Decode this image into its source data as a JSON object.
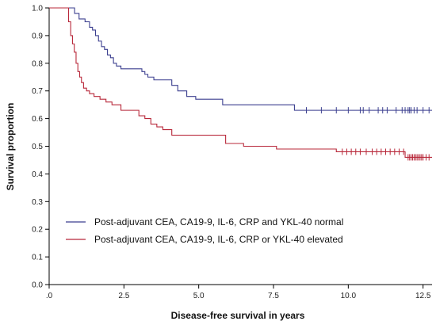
{
  "chart_data": {
    "type": "line",
    "subtype": "kaplan-meier step",
    "xlabel": "Disease-free survival in years",
    "ylabel": "Survival proportion",
    "xlim": [
      0,
      12.8
    ],
    "ylim": [
      0,
      1.0
    ],
    "xticks": [
      0,
      2.5,
      5.0,
      7.5,
      10.0,
      12.5
    ],
    "xtick_labels": [
      ".0",
      "2.5",
      "5.0",
      "7.5",
      "10.0",
      "12.5"
    ],
    "yticks": [
      0,
      0.1,
      0.2,
      0.3,
      0.4,
      0.5,
      0.6,
      0.7,
      0.8,
      0.9,
      1.0
    ],
    "ytick_labels": [
      "0.0",
      "0.1",
      "0.2",
      "0.3",
      "0.4",
      "0.5",
      "0.6",
      "0.7",
      "0.8",
      "0.9",
      "1.0"
    ],
    "grid": false,
    "legend_position": "lower-left",
    "series": [
      {
        "name": "Post-adjuvant CEA, CA19-9, IL-6, CRP and YKL-40 normal",
        "color": "#3b3f8f",
        "x": [
          0,
          0.85,
          1.0,
          1.2,
          1.35,
          1.45,
          1.55,
          1.65,
          1.75,
          1.85,
          1.95,
          2.05,
          2.15,
          2.25,
          2.4,
          3.1,
          3.2,
          3.3,
          3.5,
          4.1,
          4.3,
          4.6,
          4.9,
          5.8,
          8.2,
          12.8
        ],
        "y": [
          1.0,
          0.98,
          0.96,
          0.95,
          0.93,
          0.92,
          0.9,
          0.88,
          0.86,
          0.85,
          0.83,
          0.82,
          0.8,
          0.79,
          0.78,
          0.77,
          0.76,
          0.75,
          0.74,
          0.72,
          0.7,
          0.68,
          0.67,
          0.65,
          0.63,
          0.63
        ],
        "censor_x": [
          8.6,
          9.1,
          9.6,
          10.0,
          10.4,
          10.5,
          10.7,
          11.0,
          11.15,
          11.3,
          11.6,
          11.8,
          11.9,
          12.0,
          12.05,
          12.1,
          12.2,
          12.3,
          12.5,
          12.7
        ]
      },
      {
        "name": "Post-adjuvant CEA, CA19-9, IL-6, CRP or YKL-40 elevated",
        "color": "#b8283a",
        "x": [
          0,
          0.65,
          0.72,
          0.78,
          0.84,
          0.9,
          0.96,
          1.02,
          1.08,
          1.15,
          1.25,
          1.35,
          1.5,
          1.7,
          1.9,
          2.1,
          2.4,
          3.0,
          3.2,
          3.4,
          3.6,
          3.8,
          4.1,
          5.9,
          6.5,
          7.6,
          9.6,
          11.9,
          12.8
        ],
        "y": [
          1.0,
          0.95,
          0.9,
          0.87,
          0.84,
          0.8,
          0.77,
          0.75,
          0.73,
          0.71,
          0.7,
          0.69,
          0.68,
          0.67,
          0.66,
          0.65,
          0.63,
          0.61,
          0.6,
          0.58,
          0.57,
          0.56,
          0.54,
          0.51,
          0.5,
          0.49,
          0.48,
          0.46,
          0.46
        ],
        "censor_x": [
          9.8,
          9.95,
          10.1,
          10.25,
          10.4,
          10.6,
          10.8,
          10.95,
          11.1,
          11.25,
          11.4,
          11.55,
          11.7,
          11.85,
          12.0,
          12.05,
          12.1,
          12.15,
          12.2,
          12.25,
          12.3,
          12.35,
          12.4,
          12.45,
          12.5,
          12.6,
          12.7
        ]
      }
    ]
  }
}
